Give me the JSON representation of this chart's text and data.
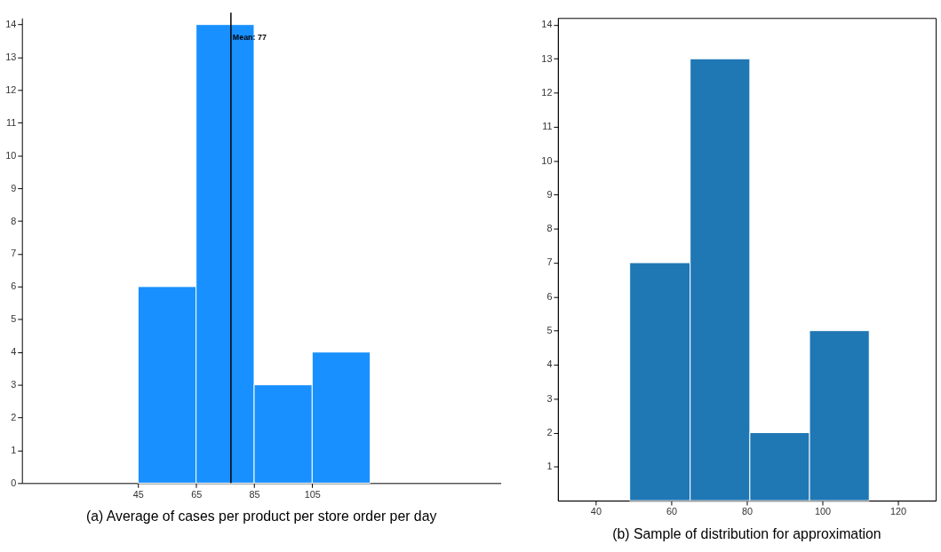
{
  "chart_data": [
    {
      "type": "histogram",
      "bins": [
        45,
        65,
        85,
        105,
        125
      ],
      "values": [
        6,
        14,
        3,
        4
      ],
      "color": "#1890ff",
      "xlim": [
        5,
        170
      ],
      "xticks": [
        45,
        65,
        85,
        105
      ],
      "ylim": [
        0,
        14.2
      ],
      "yticks": [
        0,
        1,
        2,
        3,
        4,
        5,
        6,
        7,
        8,
        9,
        10,
        11,
        12,
        13,
        14
      ],
      "grid": false,
      "ref_lines": [
        {
          "axis": "x",
          "value": 77,
          "label": "Mean: 77",
          "color": "#000000"
        }
      ],
      "annotations": [
        "(a) Average of cases per product per store order per day"
      ]
    },
    {
      "type": "histogram",
      "bins": [
        49,
        65,
        80.8,
        96.6,
        112.4
      ],
      "values": [
        7,
        13,
        2,
        5
      ],
      "color": "#1f77b4",
      "xlim": [
        30,
        130
      ],
      "xticks": [
        40,
        60,
        80,
        100,
        120
      ],
      "ylim": [
        0,
        14.2
      ],
      "yticks": [
        1,
        2,
        3,
        4,
        5,
        6,
        7,
        8,
        9,
        10,
        11,
        12,
        13,
        14
      ],
      "grid": false,
      "annotations": [
        "(b) Sample of distribution for approximation"
      ]
    }
  ]
}
